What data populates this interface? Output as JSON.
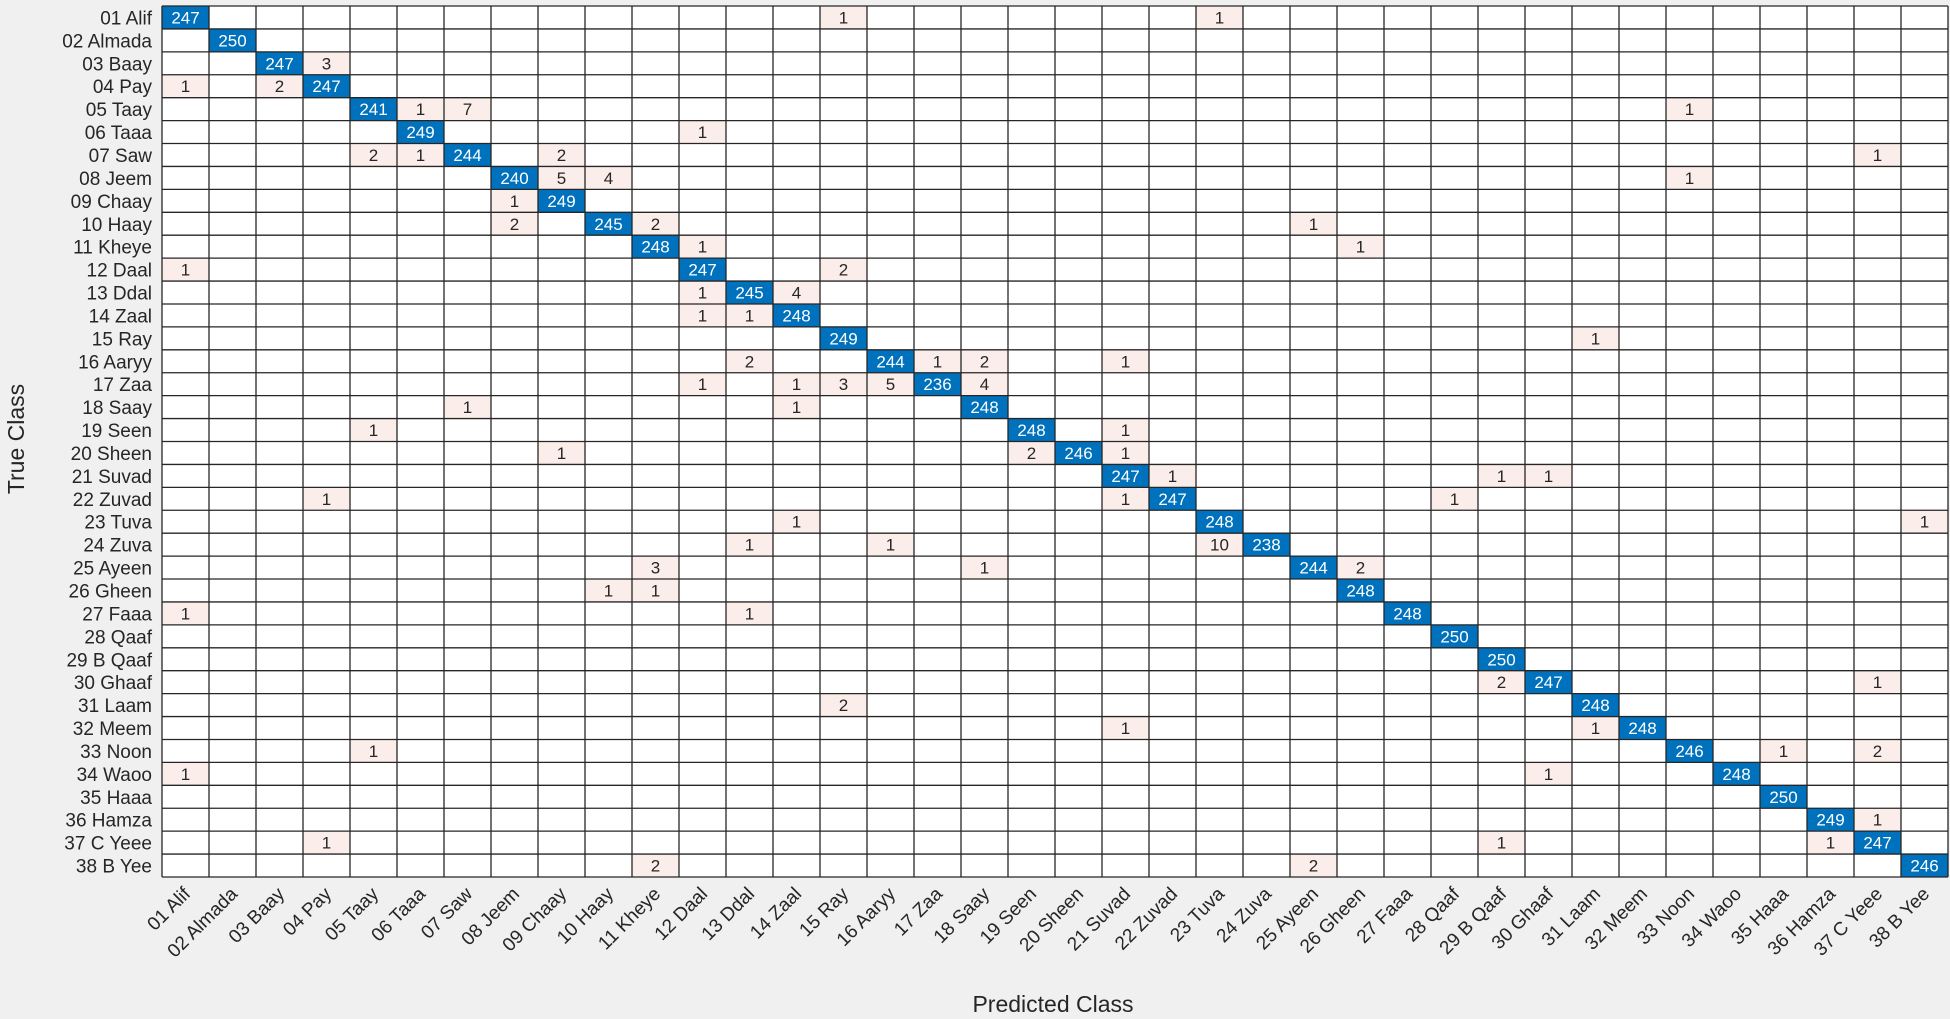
{
  "chart_data": {
    "type": "heatmap",
    "xlabel": "Predicted Class",
    "ylabel": "True Class",
    "classes": [
      "01 Alif",
      "02 Almada",
      "03 Baay",
      "04 Pay",
      "05 Taay",
      "06 Taaa",
      "07 Saw",
      "08 Jeem",
      "09 Chaay",
      "10 Haay",
      "11 Kheye",
      "12 Daal",
      "13 Ddal",
      "14 Zaal",
      "15 Ray",
      "16 Aaryy",
      "17 Zaa",
      "18 Saay",
      "19 Seen",
      "20 Sheen",
      "21 Suvad",
      "22 Zuvad",
      "23 Tuva",
      "24 Zuva",
      "25 Ayeen",
      "26 Gheen",
      "27 Faaa",
      "28 Qaaf",
      "29 B Qaaf",
      "30 Ghaaf",
      "31 Laam",
      "32 Meem",
      "33 Noon",
      "34 Waoo",
      "35 Haaa",
      "36 Hamza",
      "37 C Yeee",
      "38 B Yee"
    ],
    "cells": [
      [
        1,
        1,
        247
      ],
      [
        1,
        15,
        1
      ],
      [
        1,
        23,
        1
      ],
      [
        2,
        2,
        250
      ],
      [
        3,
        3,
        247
      ],
      [
        3,
        4,
        3
      ],
      [
        4,
        1,
        1
      ],
      [
        4,
        3,
        2
      ],
      [
        4,
        4,
        247
      ],
      [
        5,
        5,
        241
      ],
      [
        5,
        6,
        1
      ],
      [
        5,
        7,
        7
      ],
      [
        5,
        33,
        1
      ],
      [
        6,
        6,
        249
      ],
      [
        6,
        12,
        1
      ],
      [
        7,
        5,
        2
      ],
      [
        7,
        6,
        1
      ],
      [
        7,
        7,
        244
      ],
      [
        7,
        9,
        2
      ],
      [
        7,
        37,
        1
      ],
      [
        8,
        8,
        240
      ],
      [
        8,
        9,
        5
      ],
      [
        8,
        10,
        4
      ],
      [
        8,
        33,
        1
      ],
      [
        9,
        8,
        1
      ],
      [
        9,
        9,
        249
      ],
      [
        10,
        8,
        2
      ],
      [
        10,
        10,
        245
      ],
      [
        10,
        11,
        2
      ],
      [
        10,
        25,
        1
      ],
      [
        11,
        11,
        248
      ],
      [
        11,
        12,
        1
      ],
      [
        11,
        26,
        1
      ],
      [
        12,
        1,
        1
      ],
      [
        12,
        12,
        247
      ],
      [
        12,
        15,
        2
      ],
      [
        13,
        12,
        1
      ],
      [
        13,
        13,
        245
      ],
      [
        13,
        14,
        4
      ],
      [
        14,
        12,
        1
      ],
      [
        14,
        13,
        1
      ],
      [
        14,
        14,
        248
      ],
      [
        15,
        15,
        249
      ],
      [
        15,
        31,
        1
      ],
      [
        16,
        13,
        2
      ],
      [
        16,
        16,
        244
      ],
      [
        16,
        17,
        1
      ],
      [
        16,
        18,
        2
      ],
      [
        16,
        21,
        1
      ],
      [
        17,
        12,
        1
      ],
      [
        17,
        14,
        1
      ],
      [
        17,
        15,
        3
      ],
      [
        17,
        16,
        5
      ],
      [
        17,
        17,
        236
      ],
      [
        17,
        18,
        4
      ],
      [
        18,
        7,
        1
      ],
      [
        18,
        14,
        1
      ],
      [
        18,
        18,
        248
      ],
      [
        19,
        5,
        1
      ],
      [
        19,
        19,
        248
      ],
      [
        19,
        21,
        1
      ],
      [
        20,
        9,
        1
      ],
      [
        20,
        19,
        2
      ],
      [
        20,
        20,
        246
      ],
      [
        20,
        21,
        1
      ],
      [
        21,
        21,
        247
      ],
      [
        21,
        22,
        1
      ],
      [
        21,
        29,
        1
      ],
      [
        21,
        30,
        1
      ],
      [
        22,
        4,
        1
      ],
      [
        22,
        21,
        1
      ],
      [
        22,
        22,
        247
      ],
      [
        22,
        28,
        1
      ],
      [
        23,
        14,
        1
      ],
      [
        23,
        23,
        248
      ],
      [
        23,
        38,
        1
      ],
      [
        24,
        13,
        1
      ],
      [
        24,
        16,
        1
      ],
      [
        24,
        23,
        10
      ],
      [
        24,
        24,
        238
      ],
      [
        25,
        11,
        3
      ],
      [
        25,
        18,
        1
      ],
      [
        25,
        25,
        244
      ],
      [
        25,
        26,
        2
      ],
      [
        26,
        10,
        1
      ],
      [
        26,
        11,
        1
      ],
      [
        26,
        26,
        248
      ],
      [
        27,
        1,
        1
      ],
      [
        27,
        13,
        1
      ],
      [
        27,
        27,
        248
      ],
      [
        28,
        28,
        250
      ],
      [
        29,
        29,
        250
      ],
      [
        30,
        29,
        2
      ],
      [
        30,
        30,
        247
      ],
      [
        30,
        37,
        1
      ],
      [
        31,
        15,
        2
      ],
      [
        31,
        31,
        248
      ],
      [
        32,
        21,
        1
      ],
      [
        32,
        31,
        1
      ],
      [
        32,
        32,
        248
      ],
      [
        33,
        5,
        1
      ],
      [
        33,
        33,
        246
      ],
      [
        33,
        35,
        1
      ],
      [
        33,
        37,
        2
      ],
      [
        34,
        1,
        1
      ],
      [
        34,
        30,
        1
      ],
      [
        34,
        34,
        248
      ],
      [
        35,
        35,
        250
      ],
      [
        36,
        36,
        249
      ],
      [
        36,
        37,
        1
      ],
      [
        37,
        4,
        1
      ],
      [
        37,
        29,
        1
      ],
      [
        37,
        36,
        1
      ],
      [
        37,
        37,
        247
      ],
      [
        38,
        11,
        2
      ],
      [
        38,
        25,
        2
      ],
      [
        38,
        38,
        246
      ]
    ],
    "colors": {
      "diagonal": "#0072bd",
      "off_diagonal": "#fbeeea",
      "empty": "#ffffff",
      "grid": "#262626",
      "background": "#f0f0f0"
    }
  }
}
